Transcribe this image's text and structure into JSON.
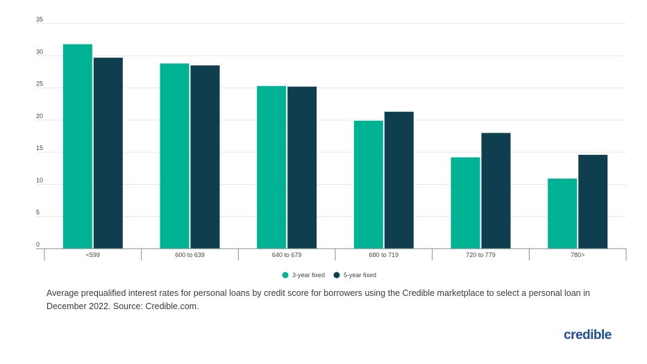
{
  "chart_data": {
    "type": "bar",
    "categories": [
      "<599",
      "600 to 639",
      "640 to 679",
      "680 to 719",
      "720 to 779",
      "780>"
    ],
    "series": [
      {
        "name": "3-year fixed",
        "values": [
          31.8,
          28.8,
          25.3,
          19.9,
          14.2,
          10.9
        ],
        "color": "#00b294"
      },
      {
        "name": "5-year fixed",
        "values": [
          29.7,
          28.5,
          25.2,
          21.3,
          18.0,
          14.6
        ],
        "color": "#0f3e4f"
      }
    ],
    "yticks": [
      0,
      5,
      10,
      15,
      20,
      25,
      30,
      35
    ],
    "ylim": [
      0,
      35
    ],
    "grid": true,
    "legend": "bottom-center",
    "title": "",
    "xlabel": "",
    "ylabel": ""
  },
  "caption": "Average prequalified interest rates for personal loans by credit score for borrowers using the Credible marketplace to select a personal loan in December 2022. Source: Credible.com.",
  "logo_text": "credible"
}
